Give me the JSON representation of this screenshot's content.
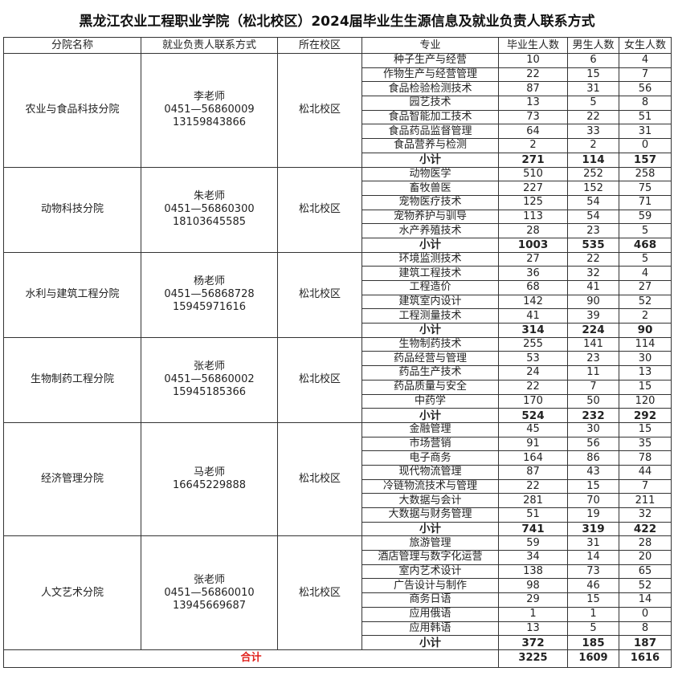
{
  "title": "黑龙江农业工程职业学院（松北校区）2024届毕业生生源信息及就业负责人联系方式",
  "headers": [
    "分院名称",
    "就业负责人联系方式",
    "所在校区",
    "专业",
    "毕业生人数",
    "男生人数",
    "女生人数"
  ],
  "subtotal_label": "小计",
  "colors": {
    "total_label": "#e0201b",
    "border": "#333333"
  },
  "groups": [
    {
      "name": "农业与食品科技分院",
      "contact": [
        "李老师",
        "0451—56860009",
        "13159843866"
      ],
      "campus": "松北校区",
      "majors": [
        [
          "种子生产与经营",
          10,
          6,
          4
        ],
        [
          "作物生产与经营管理",
          22,
          15,
          7
        ],
        [
          "食品检验检测技术",
          87,
          31,
          56
        ],
        [
          "园艺技术",
          13,
          5,
          8
        ],
        [
          "食品智能加工技术",
          73,
          22,
          51
        ],
        [
          "食品药品监督管理",
          64,
          33,
          31
        ],
        [
          "食品营养与检测",
          2,
          2,
          0
        ]
      ],
      "subtotal": [
        271,
        114,
        157
      ]
    },
    {
      "name": "动物科技分院",
      "contact": [
        "朱老师",
        "0451—56860300",
        "18103645585"
      ],
      "campus": "松北校区",
      "majors": [
        [
          "动物医学",
          510,
          252,
          258
        ],
        [
          "畜牧兽医",
          227,
          152,
          75
        ],
        [
          "宠物医疗技术",
          125,
          54,
          71
        ],
        [
          "宠物养护与驯导",
          113,
          54,
          59
        ],
        [
          "水产养殖技术",
          28,
          23,
          5
        ]
      ],
      "subtotal": [
        1003,
        535,
        468
      ]
    },
    {
      "name": "水利与建筑工程分院",
      "contact": [
        "杨老师",
        "0451—56868728",
        "15945971616"
      ],
      "campus": "松北校区",
      "majors": [
        [
          "环境监测技术",
          27,
          22,
          5
        ],
        [
          "建筑工程技术",
          36,
          32,
          4
        ],
        [
          "工程造价",
          68,
          41,
          27
        ],
        [
          "建筑室内设计",
          142,
          90,
          52
        ],
        [
          "工程测量技术",
          41,
          39,
          2
        ]
      ],
      "subtotal": [
        314,
        224,
        90
      ]
    },
    {
      "name": "生物制药工程分院",
      "contact": [
        "张老师",
        "0451—56860002",
        "15945185366"
      ],
      "campus": "松北校区",
      "majors": [
        [
          "生物制药技术",
          255,
          141,
          114
        ],
        [
          "药品经营与管理",
          53,
          23,
          30
        ],
        [
          "药品生产技术",
          24,
          11,
          13
        ],
        [
          "药品质量与安全",
          22,
          7,
          15
        ],
        [
          "中药学",
          170,
          50,
          120
        ]
      ],
      "subtotal": [
        524,
        232,
        292
      ]
    },
    {
      "name": "经济管理分院",
      "contact": [
        "马老师",
        "16645229888"
      ],
      "campus": "松北校区",
      "majors": [
        [
          "金融管理",
          45,
          30,
          15
        ],
        [
          "市场营销",
          91,
          56,
          35
        ],
        [
          "电子商务",
          164,
          86,
          78
        ],
        [
          "现代物流管理",
          87,
          43,
          44
        ],
        [
          "冷链物流技术与管理",
          22,
          15,
          7
        ],
        [
          "大数据与会计",
          281,
          70,
          211
        ],
        [
          "大数据与财务管理",
          51,
          19,
          32
        ]
      ],
      "subtotal": [
        741,
        319,
        422
      ]
    },
    {
      "name": "人文艺术分院",
      "contact": [
        "张老师",
        "0451—56860010",
        "13945669687"
      ],
      "campus": "松北校区",
      "majors": [
        [
          "旅游管理",
          59,
          31,
          28
        ],
        [
          "酒店管理与数字化运营",
          34,
          14,
          20
        ],
        [
          "室内艺术设计",
          138,
          73,
          65
        ],
        [
          "广告设计与制作",
          98,
          46,
          52
        ],
        [
          "商务日语",
          29,
          15,
          14
        ],
        [
          "应用俄语",
          1,
          1,
          0
        ],
        [
          "应用韩语",
          13,
          5,
          8
        ]
      ],
      "subtotal": [
        372,
        185,
        187
      ]
    }
  ],
  "total": {
    "label": "合计",
    "values": [
      3225,
      1609,
      1616
    ]
  }
}
